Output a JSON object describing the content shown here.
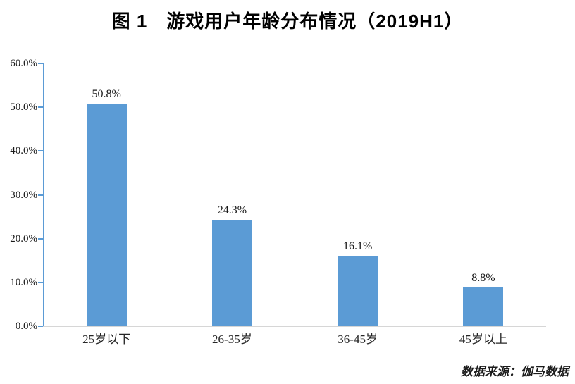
{
  "title": "图 1　游戏用户年龄分布情况（2019H1）",
  "source_note": "数据来源：伽马数据",
  "colors": {
    "bar": "#5B9BD5",
    "y_axis": "#5B9BD5",
    "x_axis": "#D6D6D6",
    "text": "#1A1A1A"
  },
  "chart_data": {
    "type": "bar",
    "title": "图 1　游戏用户年龄分布情况（2019H1）",
    "categories": [
      "25岁以下",
      "26-35岁",
      "36-45岁",
      "45岁以上"
    ],
    "values": [
      50.8,
      24.3,
      16.1,
      8.8
    ],
    "value_labels": [
      "50.8%",
      "24.3%",
      "16.1%",
      "8.8%"
    ],
    "y_ticks": [
      "0.0%",
      "10.0%",
      "20.0%",
      "30.0%",
      "40.0%",
      "50.0%",
      "60.0%"
    ],
    "ylim": [
      0,
      60
    ],
    "xlabel": "",
    "ylabel": "",
    "grid": false,
    "legend": null,
    "bar_color": "#5B9BD5",
    "source": "数据来源：伽马数据"
  }
}
